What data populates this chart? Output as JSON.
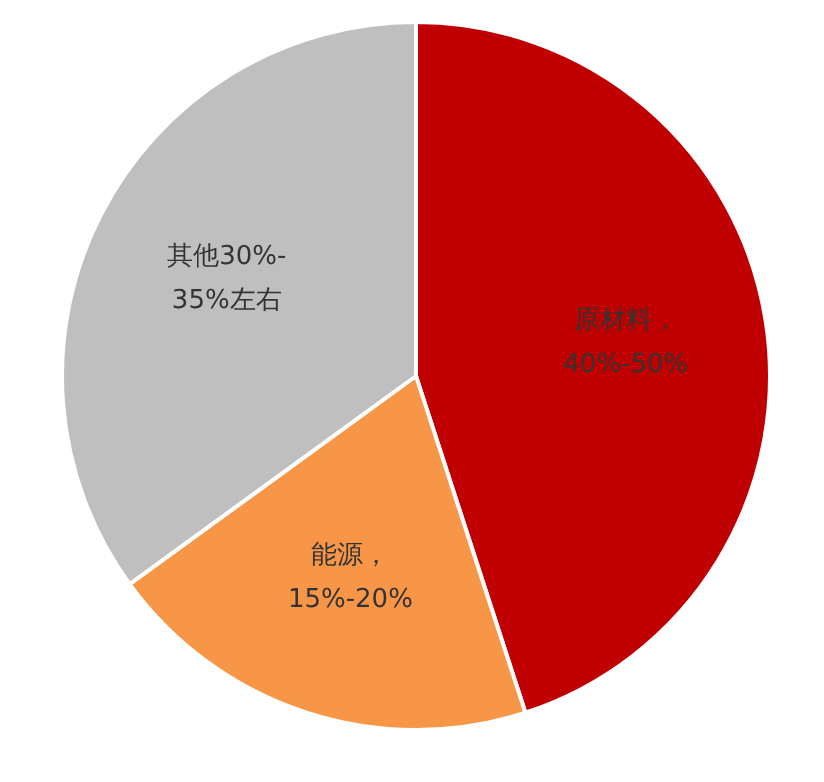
{
  "chart_data": {
    "type": "pie",
    "categories": [
      "原材料，\n40%-50%",
      "能源，\n15%-20%",
      "其他30%-\n35%左右"
    ],
    "values": [
      45,
      20,
      35
    ],
    "colors": [
      "#c00000",
      "#f79646",
      "#bfbfbf"
    ],
    "legend": false
  }
}
